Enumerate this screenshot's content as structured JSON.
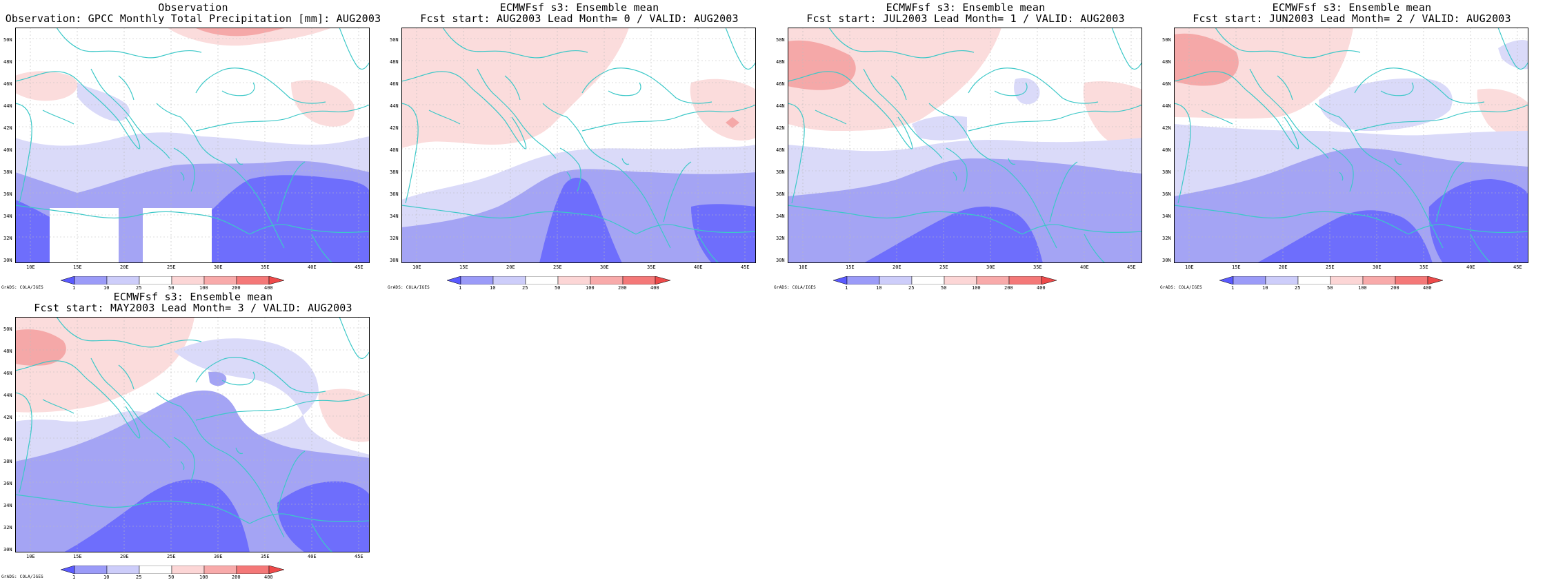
{
  "panels": [
    {
      "title1": "Observation",
      "title2": "Observation: GPCC Monthly Total Precipitation [mm]: AUG2003"
    },
    {
      "title1": "ECMWFsf s3: Ensemble mean",
      "title2": "Fcst start: AUG2003  Lead Month= 0 / VALID: AUG2003"
    },
    {
      "title1": "ECMWFsf s3: Ensemble mean",
      "title2": "Fcst start: JUL2003  Lead Month= 1 / VALID: AUG2003"
    },
    {
      "title1": "ECMWFsf s3: Ensemble mean",
      "title2": "Fcst start: JUN2003  Lead Month= 2 / VALID: AUG2003"
    },
    {
      "title1": "ECMWFsf s3: Ensemble mean",
      "title2": "Fcst start: MAY2003  Lead Month= 3 / VALID: AUG2003"
    }
  ],
  "lat_labels": [
    "50N",
    "48N",
    "46N",
    "44N",
    "42N",
    "40N",
    "38N",
    "36N",
    "34N",
    "32N",
    "30N"
  ],
  "lon_labels": [
    "10E",
    "15E",
    "20E",
    "25E",
    "30E",
    "35E",
    "40E",
    "45E"
  ],
  "colorbar": {
    "labels": [
      "1",
      "10",
      "25",
      "50",
      "100",
      "200",
      "400"
    ],
    "colors": [
      "#5a5aff",
      "#9b9bf8",
      "#cdcdfa",
      "#ffffff",
      "#fcd6d6",
      "#f8aaaa",
      "#f47878",
      "#ee4a4a"
    ]
  },
  "credit": "GrADS: COLA/IGES",
  "colors": {
    "land_outline": "#3cc8c8",
    "grid": "#bbbbbb",
    "blue_dark": "#6e6efc",
    "blue_mid": "#a4a4f4",
    "blue_light": "#dadaf9",
    "pink_light": "#fbdcdc",
    "pink_mid": "#f5a8a8"
  }
}
